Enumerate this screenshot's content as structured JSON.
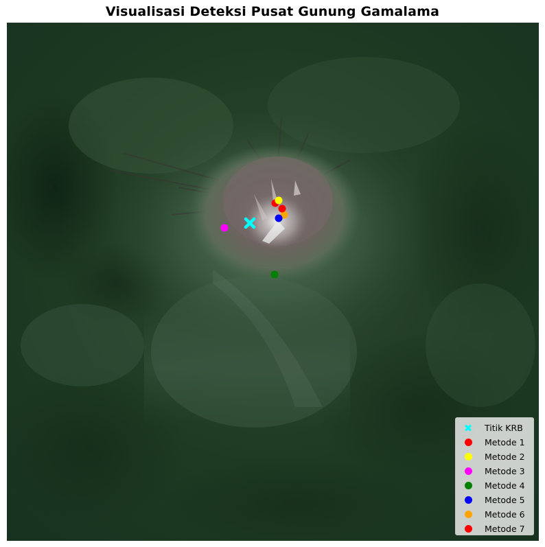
{
  "title": "Visualisasi Deteksi Pusat Gunung Gamalama",
  "colors": {
    "krb": "#00ffff",
    "metode_1": "#ff0000",
    "metode_2": "#ffff00",
    "metode_3": "#ff00ff",
    "metode_4": "#008000",
    "metode_5": "#0000ff",
    "metode_6": "#ffa500",
    "metode_7": "#ff0000"
  },
  "legend": {
    "placement": "lower-right",
    "items": [
      {
        "label": "Titik KRB",
        "marker": "x-icon",
        "color": "#00ffff"
      },
      {
        "label": "Metode 1",
        "marker": "circle-icon",
        "color": "#ff0000"
      },
      {
        "label": "Metode 2",
        "marker": "circle-icon",
        "color": "#ffff00"
      },
      {
        "label": "Metode 3",
        "marker": "circle-icon",
        "color": "#ff00ff"
      },
      {
        "label": "Metode 4",
        "marker": "circle-icon",
        "color": "#008000"
      },
      {
        "label": "Metode 5",
        "marker": "circle-icon",
        "color": "#0000ff"
      },
      {
        "label": "Metode 6",
        "marker": "circle-icon",
        "color": "#ffa500"
      },
      {
        "label": "Metode 7",
        "marker": "circle-icon",
        "color": "#ff0000"
      }
    ]
  }
}
